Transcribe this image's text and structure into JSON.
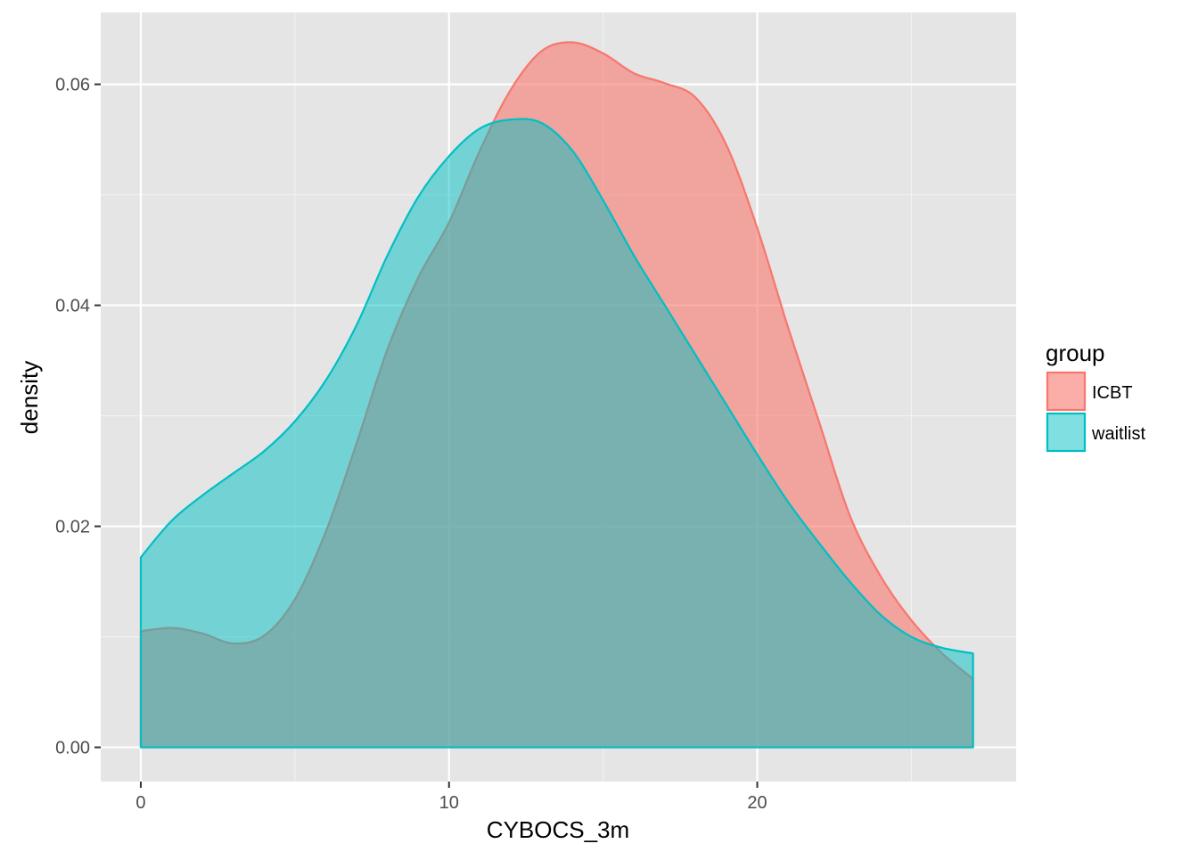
{
  "chart_data": {
    "type": "area",
    "subtype": "density",
    "title": "",
    "xlabel": "CYBOCS_3m",
    "ylabel": "density",
    "xlim": [
      -1.3,
      28.4
    ],
    "ylim": [
      -0.0031,
      0.0665
    ],
    "x_ticks": [
      0,
      10,
      20
    ],
    "x_tick_labels": [
      "0",
      "10",
      "20"
    ],
    "y_ticks": [
      0.0,
      0.02,
      0.04,
      0.06
    ],
    "y_tick_labels": [
      "0.00",
      "0.02",
      "0.04",
      "0.06"
    ],
    "grid": true,
    "panel_background": "#e5e5e5",
    "legend": {
      "title": "group",
      "position": "right",
      "entries": [
        "ICBT",
        "waitlist"
      ]
    },
    "series": [
      {
        "name": "ICBT",
        "color": "#f8766d",
        "fill": "#f8766d",
        "fill_opacity": 0.6,
        "x": [
          0,
          1,
          2,
          3,
          4,
          5,
          6,
          7,
          8,
          9,
          10,
          11,
          12,
          13,
          14,
          15,
          16,
          17,
          18,
          19,
          20,
          21,
          22,
          23,
          24,
          25,
          26,
          27
        ],
        "y": [
          0.0105,
          0.0108,
          0.0103,
          0.0094,
          0.0101,
          0.0134,
          0.0195,
          0.0275,
          0.036,
          0.0425,
          0.0475,
          0.054,
          0.0595,
          0.063,
          0.0638,
          0.0628,
          0.061,
          0.0601,
          0.0588,
          0.0545,
          0.047,
          0.038,
          0.0295,
          0.021,
          0.0155,
          0.0115,
          0.0085,
          0.0062
        ]
      },
      {
        "name": "waitlist",
        "color": "#00bfc4",
        "fill": "#00bfc4",
        "fill_opacity": 0.5,
        "x": [
          0,
          1,
          2,
          3,
          4,
          5,
          6,
          7,
          8,
          9,
          10,
          11,
          12,
          13,
          14,
          15,
          16,
          17,
          18,
          19,
          20,
          21,
          22,
          23,
          24,
          25,
          26,
          27
        ],
        "y": [
          0.0172,
          0.0205,
          0.0228,
          0.0248,
          0.0268,
          0.0295,
          0.0332,
          0.0382,
          0.0445,
          0.0498,
          0.0535,
          0.056,
          0.0568,
          0.0565,
          0.054,
          0.0495,
          0.0445,
          0.04,
          0.0355,
          0.031,
          0.0265,
          0.0222,
          0.0185,
          0.015,
          0.012,
          0.01,
          0.009,
          0.0085
        ]
      }
    ]
  }
}
